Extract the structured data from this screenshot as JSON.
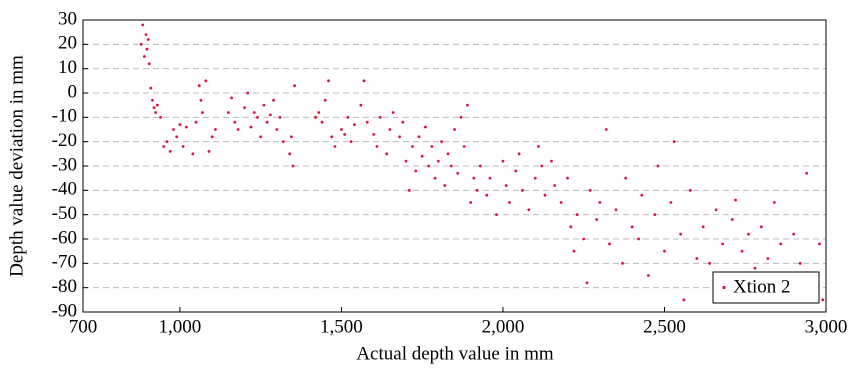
{
  "chart_data": {
    "type": "scatter",
    "x_label": "Actual depth value in mm",
    "y_label": "Depth value deviation in mm",
    "xlim": [
      700,
      3000
    ],
    "ylim": [
      -90,
      30
    ],
    "xticks": [
      700,
      {
        "value": 1000,
        "label": "1,000"
      },
      {
        "value": 1500,
        "label": "1,500"
      },
      {
        "value": 2000,
        "label": "2,000"
      },
      {
        "value": 2500,
        "label": "2,500"
      },
      {
        "value": 3000,
        "label": "3,000"
      }
    ],
    "yticks": [
      30,
      20,
      10,
      0,
      -10,
      -20,
      -30,
      -40,
      -50,
      -60,
      -70,
      -80,
      -90
    ],
    "grid": true,
    "legend": "lower right",
    "series": [
      {
        "name": "Xtion 2",
        "color": "#e0103a",
        "x": [
          880,
          885,
          890,
          895,
          898,
          902,
          905,
          910,
          915,
          920,
          925,
          930,
          940,
          950,
          960,
          970,
          980,
          990,
          1000,
          1010,
          1020,
          1040,
          1050,
          1060,
          1065,
          1070,
          1080,
          1090,
          1100,
          1110,
          1150,
          1160,
          1170,
          1180,
          1200,
          1210,
          1220,
          1230,
          1240,
          1250,
          1260,
          1270,
          1280,
          1290,
          1300,
          1310,
          1320,
          1340,
          1345,
          1350,
          1355,
          1420,
          1430,
          1440,
          1450,
          1460,
          1470,
          1480,
          1500,
          1510,
          1520,
          1530,
          1540,
          1560,
          1570,
          1580,
          1600,
          1610,
          1620,
          1640,
          1650,
          1660,
          1680,
          1690,
          1700,
          1710,
          1720,
          1730,
          1740,
          1750,
          1760,
          1770,
          1780,
          1790,
          1800,
          1810,
          1820,
          1830,
          1840,
          1850,
          1860,
          1870,
          1880,
          1890,
          1900,
          1910,
          1920,
          1930,
          1950,
          1960,
          1980,
          2000,
          2010,
          2020,
          2040,
          2050,
          2060,
          2080,
          2100,
          2110,
          2120,
          2130,
          2150,
          2160,
          2180,
          2200,
          2210,
          2220,
          2230,
          2250,
          2260,
          2270,
          2290,
          2300,
          2320,
          2330,
          2350,
          2370,
          2380,
          2400,
          2420,
          2430,
          2450,
          2470,
          2480,
          2500,
          2520,
          2530,
          2550,
          2560,
          2580,
          2600,
          2620,
          2640,
          2660,
          2680,
          2700,
          2710,
          2720,
          2740,
          2760,
          2780,
          2800,
          2820,
          2840,
          2860,
          2880,
          2900,
          2920,
          2940,
          2960,
          2980,
          2990
        ],
        "values": [
          20,
          28,
          15,
          24,
          18,
          22,
          12,
          2,
          -3,
          -6,
          -8,
          -5,
          -10,
          -22,
          -20,
          -24,
          -15,
          -18,
          -13,
          -22,
          -14,
          -25,
          -12,
          3,
          -3,
          -8,
          5,
          -24,
          -18,
          -15,
          -8,
          -2,
          -12,
          -15,
          -6,
          0,
          -14,
          -8,
          -10,
          -18,
          -5,
          -12,
          -9,
          -3,
          -15,
          -10,
          -20,
          -25,
          -18,
          -30,
          3,
          -10,
          -8,
          -12,
          -3,
          5,
          -18,
          -22,
          -15,
          -17,
          -10,
          -20,
          -13,
          -5,
          5,
          -12,
          -17,
          -22,
          -10,
          -25,
          -15,
          -8,
          -18,
          -12,
          -28,
          -40,
          -22,
          -32,
          -18,
          -26,
          -14,
          -30,
          -22,
          -35,
          -28,
          -20,
          -38,
          -25,
          -30,
          -15,
          -33,
          -10,
          -22,
          -5,
          -45,
          -35,
          -40,
          -30,
          -42,
          -35,
          -50,
          -28,
          -38,
          -45,
          -32,
          -25,
          -40,
          -48,
          -35,
          -22,
          -30,
          -42,
          -28,
          -38,
          -45,
          -35,
          -55,
          -65,
          -50,
          -60,
          -78,
          -40,
          -52,
          -45,
          -15,
          -62,
          -48,
          -70,
          -35,
          -55,
          -60,
          -42,
          -75,
          -50,
          -30,
          -65,
          -45,
          -20,
          -58,
          -85,
          -40,
          -68,
          -55,
          -70,
          -48,
          -62,
          -75,
          -52,
          -44,
          -65,
          -58,
          -72,
          -55,
          -68,
          -45,
          -62,
          -75,
          -58,
          -70,
          -33,
          -80,
          -62,
          -85
        ]
      }
    ]
  }
}
